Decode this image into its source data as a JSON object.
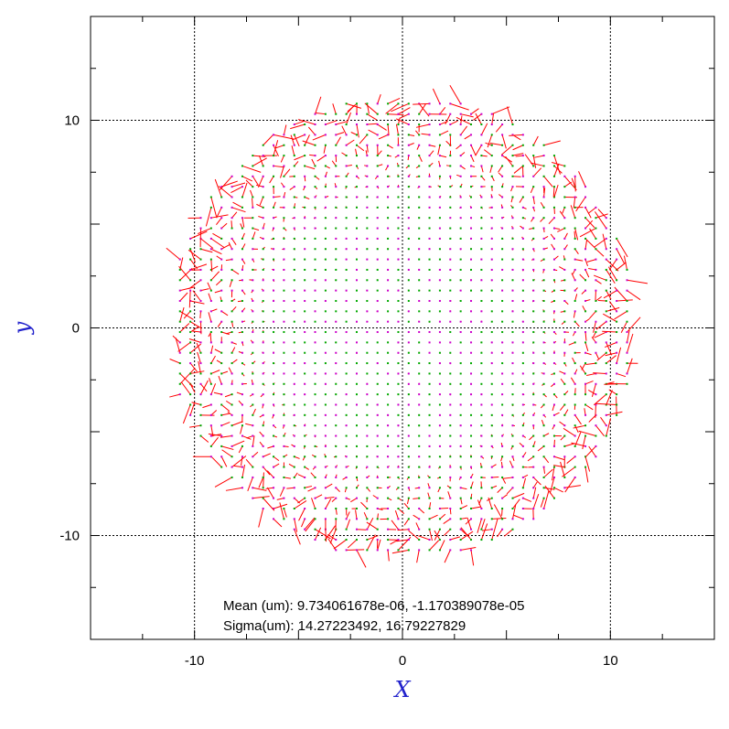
{
  "chart_data": {
    "type": "scatter",
    "subtype": "vector-field",
    "xlabel": "X",
    "ylabel": "y",
    "xlim": [
      -15,
      15
    ],
    "ylim": [
      -15,
      15
    ],
    "x_ticks": [
      -10,
      0,
      10
    ],
    "y_ticks": [
      -10,
      0,
      10
    ],
    "grid": true,
    "grid_style": "dotted",
    "grid_spacing": 0.5,
    "field_radius": 11.2,
    "annotations": [
      "Mean (um): 9.734061678e-06, -1.170389078e-05",
      "Sigma(um): 14.27223492, 16.79227829"
    ],
    "colors": {
      "vector": "#ff0000",
      "marker_a": "#00aa00",
      "marker_b": "#cc00cc",
      "axis_title": "#2222cc",
      "gridline": "#000000"
    }
  }
}
